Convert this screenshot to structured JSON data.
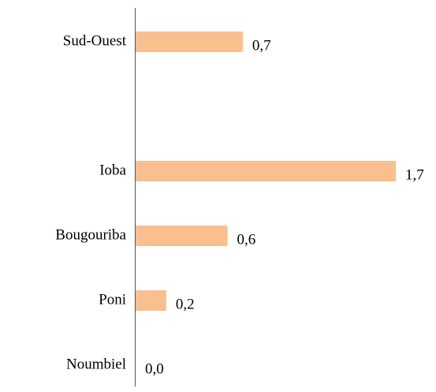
{
  "chart_data": {
    "type": "hbar",
    "categories": [
      "Sud-Ouest",
      null,
      "Ioba",
      "Bougouriba",
      "Poni",
      "Noumbiel"
    ],
    "values": [
      0.7,
      null,
      1.7,
      0.6,
      0.2,
      0.0
    ],
    "value_labels": [
      "0,7",
      null,
      "1,7",
      "0,6",
      "0,2",
      "0,0"
    ],
    "color": "#f9bf8f",
    "xlim": [
      0,
      1.7
    ]
  }
}
